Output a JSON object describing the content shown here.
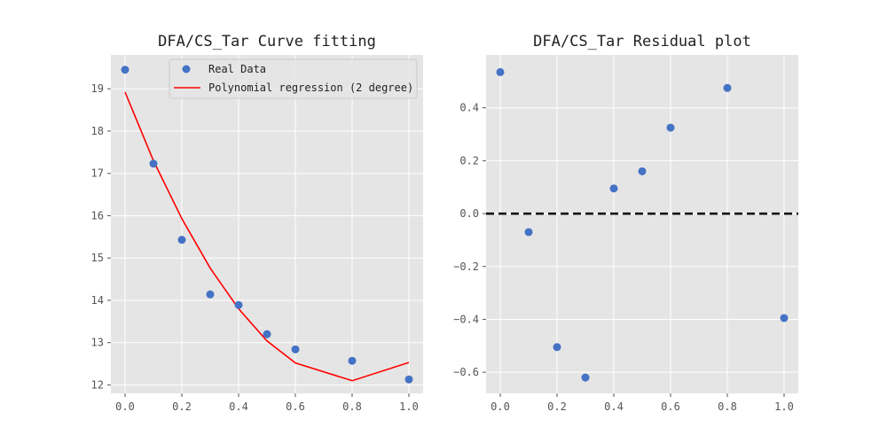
{
  "colors": {
    "background": "#ffffff",
    "axes_face": "#e5e5e5",
    "grid": "#ffffff",
    "points": "#4472c4",
    "fit_line": "#ff0000",
    "zero_line": "#000000"
  },
  "chart_data": [
    {
      "type": "scatter",
      "title": "DFA/CS_Tar Curve fitting",
      "xlabel": "",
      "ylabel": "",
      "xlim": [
        -0.05,
        1.05
      ],
      "ylim": [
        11.8,
        19.8
      ],
      "xticks": [
        0.0,
        0.2,
        0.4,
        0.6,
        0.8,
        1.0
      ],
      "xtick_labels": [
        "0.0",
        "0.2",
        "0.4",
        "0.6",
        "0.8",
        "1.0"
      ],
      "yticks": [
        12,
        13,
        14,
        15,
        16,
        17,
        18,
        19
      ],
      "ytick_labels": [
        "12",
        "13",
        "14",
        "15",
        "16",
        "17",
        "18",
        "19"
      ],
      "grid": true,
      "legend": {
        "placement": "top-center",
        "entries": [
          {
            "label": "Real Data",
            "marker": "circle"
          },
          {
            "label": "Polynomial regression (2 degree)",
            "marker": "line"
          }
        ]
      },
      "series": [
        {
          "name": "Real Data",
          "kind": "scatter",
          "x": [
            0.0,
            0.1,
            0.2,
            0.3,
            0.4,
            0.5,
            0.6,
            0.8,
            1.0
          ],
          "y": [
            19.45,
            17.23,
            15.43,
            14.14,
            13.89,
            13.2,
            12.84,
            12.57,
            12.13
          ]
        },
        {
          "name": "Polynomial regression (2 degree)",
          "kind": "line",
          "x": [
            0.0,
            0.1,
            0.2,
            0.3,
            0.4,
            0.5,
            0.6,
            0.8,
            1.0
          ],
          "y": [
            18.92,
            17.3,
            15.93,
            14.76,
            13.8,
            13.04,
            12.52,
            12.1,
            12.53
          ]
        }
      ]
    },
    {
      "type": "scatter",
      "title": "DFA/CS_Tar Residual plot",
      "xlabel": "",
      "ylabel": "",
      "xlim": [
        -0.05,
        1.05
      ],
      "ylim": [
        -0.68,
        0.6
      ],
      "xticks": [
        0.0,
        0.2,
        0.4,
        0.6,
        0.8,
        1.0
      ],
      "xtick_labels": [
        "0.0",
        "0.2",
        "0.4",
        "0.6",
        "0.8",
        "1.0"
      ],
      "yticks": [
        -0.6,
        -0.4,
        -0.2,
        0.0,
        0.2,
        0.4
      ],
      "ytick_labels": [
        "−0.6",
        "−0.4",
        "−0.2",
        "0.0",
        "0.2",
        "0.4"
      ],
      "grid": true,
      "reference_line": {
        "y": 0.0,
        "style": "dashed"
      },
      "series": [
        {
          "kind": "scatter",
          "x": [
            0.0,
            0.1,
            0.2,
            0.3,
            0.4,
            0.5,
            0.6,
            0.8,
            1.0
          ],
          "y": [
            0.535,
            -0.07,
            -0.505,
            -0.62,
            0.095,
            0.16,
            0.325,
            0.475,
            -0.395
          ]
        }
      ]
    }
  ]
}
